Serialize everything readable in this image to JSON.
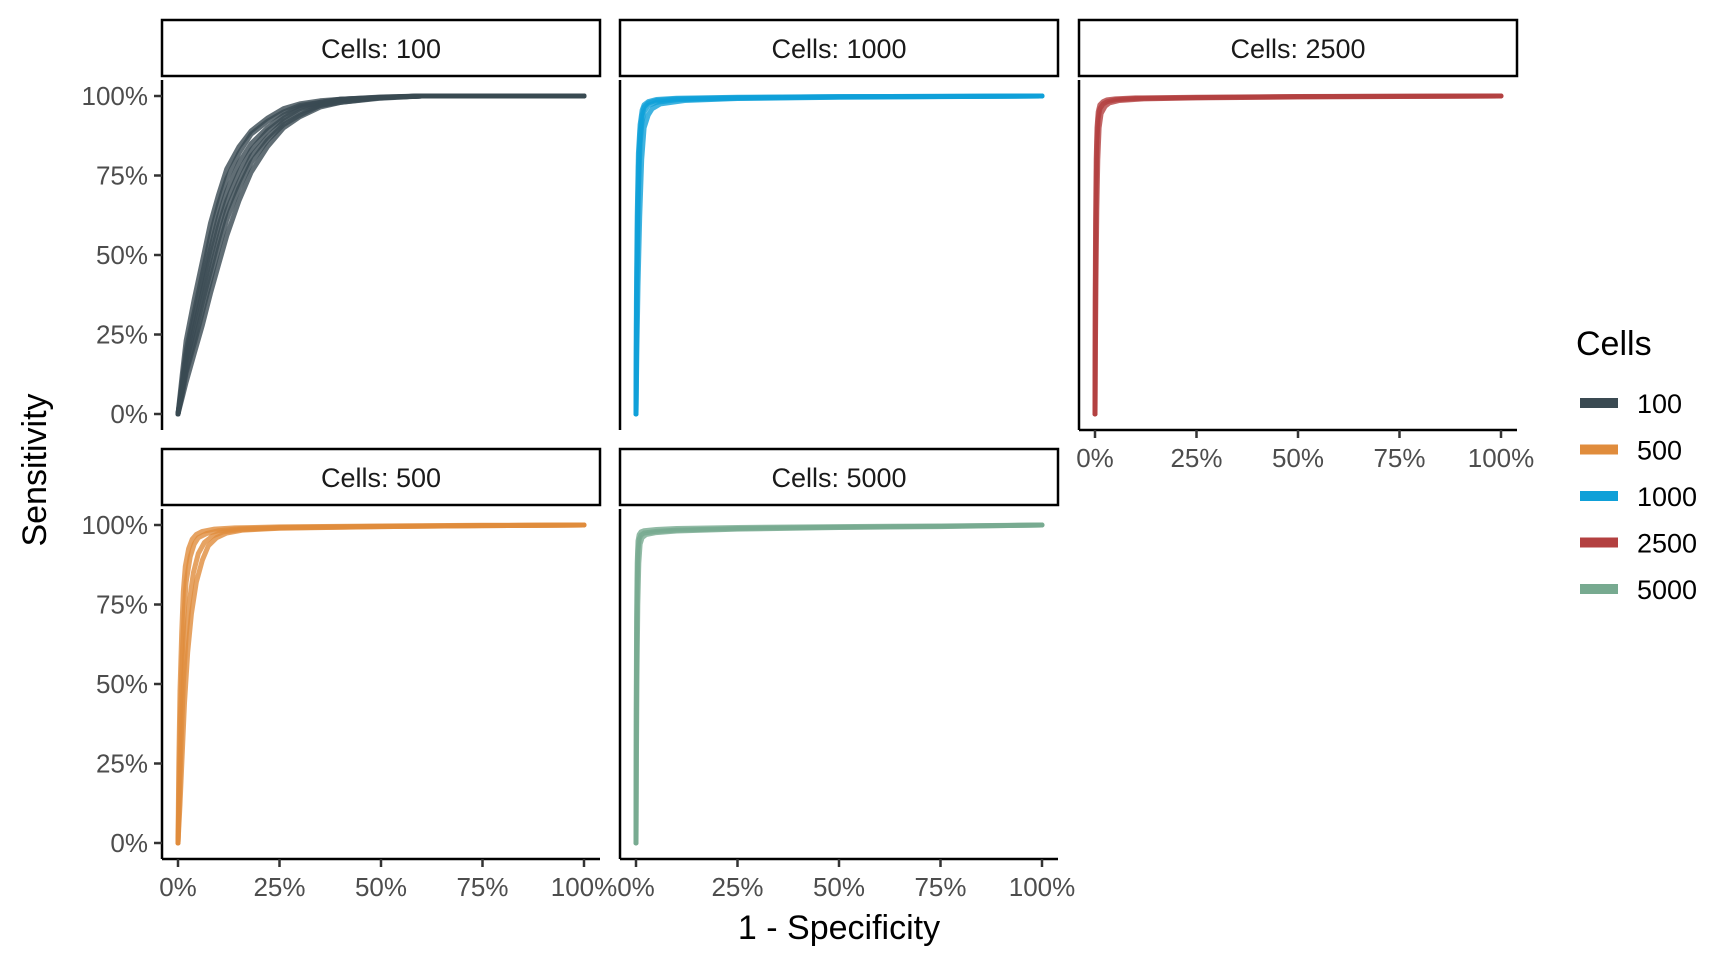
{
  "chart_data": {
    "type": "line",
    "xlabel": "1 - Specificity",
    "ylabel": "Sensitivity",
    "xlim": [
      0,
      100
    ],
    "ylim": [
      0,
      100
    ],
    "x_ticks": [
      "0%",
      "25%",
      "50%",
      "75%",
      "100%"
    ],
    "y_ticks": [
      "0%",
      "25%",
      "50%",
      "75%",
      "100%"
    ],
    "grid": false,
    "legend": {
      "title": "Cells",
      "position": "right",
      "items": [
        {
          "label": "100",
          "color": "#3a4a52"
        },
        {
          "label": "500",
          "color": "#e08c3c"
        },
        {
          "label": "1000",
          "color": "#0fa0d8"
        },
        {
          "label": "2500",
          "color": "#b34040"
        },
        {
          "label": "5000",
          "color": "#77aa90"
        }
      ]
    },
    "panels": [
      {
        "strip": "Cells: 100",
        "color": "#3a4a52",
        "series": [
          {
            "x": [
              0,
              1,
              2,
              4,
              6,
              8,
              10,
              12,
              15,
              18,
              22,
              26,
              30,
              35,
              40,
              50,
              60,
              75,
              100
            ],
            "y": [
              0,
              10,
              20,
              32,
              44,
              56,
              66,
              74,
              82,
              88,
              92,
              95,
              97,
              98,
              99,
              99.5,
              100,
              100,
              100
            ]
          },
          {
            "x": [
              0,
              1,
              2,
              4,
              6,
              8,
              10,
              12,
              15,
              18,
              22,
              26,
              30,
              35,
              40,
              50,
              60,
              75,
              100
            ],
            "y": [
              0,
              6,
              13,
              22,
              32,
              42,
              52,
              61,
              71,
              79,
              86,
              91,
              94,
              97,
              98,
              99.5,
              100,
              100,
              100
            ]
          },
          {
            "x": [
              0,
              1,
              2,
              4,
              6,
              8,
              10,
              12,
              15,
              18,
              22,
              26,
              30,
              35,
              40,
              50,
              60,
              75,
              100
            ],
            "y": [
              0,
              8,
              16,
              27,
              38,
              49,
              59,
              67,
              76,
              83,
              89,
              93,
              96,
              97.5,
              98.5,
              99.5,
              100,
              100,
              100
            ]
          },
          {
            "x": [
              0,
              1,
              2,
              4,
              6,
              8,
              10,
              12,
              15,
              18,
              22,
              26,
              30,
              35,
              40,
              50,
              60,
              75,
              100
            ],
            "y": [
              0,
              12,
              23,
              36,
              48,
              60,
              69,
              77,
              84,
              89,
              93,
              96,
              97.5,
              98.5,
              99,
              99.7,
              100,
              100,
              100
            ]
          },
          {
            "x": [
              0,
              1,
              2,
              4,
              6,
              8,
              10,
              12,
              15,
              18,
              22,
              26,
              30,
              35,
              40,
              50,
              60,
              75,
              100
            ],
            "y": [
              0,
              5,
              10,
              19,
              28,
              38,
              47,
              56,
              67,
              76,
              84,
              90,
              93.5,
              96.5,
              98,
              99.3,
              100,
              100,
              100
            ]
          },
          {
            "x": [
              0,
              1,
              2,
              4,
              6,
              8,
              10,
              12,
              15,
              18,
              22,
              26,
              30,
              35,
              40,
              50,
              60,
              75,
              100
            ],
            "y": [
              0,
              9,
              18,
              30,
              41,
              52,
              62,
              70,
              79,
              85,
              90,
              94,
              96.5,
              98,
              99,
              99.6,
              100,
              100,
              100
            ]
          },
          {
            "x": [
              0,
              1,
              2,
              4,
              6,
              8,
              10,
              12,
              15,
              18,
              22,
              26,
              30,
              35,
              40,
              50,
              60,
              75,
              100
            ],
            "y": [
              0,
              7,
              14,
              24,
              35,
              45,
              55,
              64,
              73,
              81,
              87,
              92,
              95,
              97,
              98.5,
              99.5,
              100,
              100,
              100
            ]
          }
        ]
      },
      {
        "strip": "Cells: 1000",
        "color": "#0fa0d8",
        "series": [
          {
            "x": [
              0,
              0.1,
              0.3,
              0.6,
              1,
              1.5,
              2,
              3,
              5,
              10,
              25,
              50,
              100
            ],
            "y": [
              0,
              20,
              45,
              70,
              85,
              92,
              95,
              97,
              98,
              98.8,
              99.3,
              99.7,
              100
            ]
          },
          {
            "x": [
              0,
              0.1,
              0.3,
              0.6,
              1,
              1.5,
              2,
              3,
              5,
              10,
              25,
              50,
              100
            ],
            "y": [
              0,
              28,
              55,
              78,
              89,
              94,
              96.5,
              97.8,
              98.6,
              99.1,
              99.5,
              99.8,
              100
            ]
          },
          {
            "x": [
              0,
              0.2,
              0.5,
              0.9,
              1.4,
              2,
              3,
              4,
              6,
              12,
              25,
              50,
              100
            ],
            "y": [
              0,
              18,
              40,
              62,
              80,
              90,
              94,
              96,
              97.5,
              98.6,
              99.2,
              99.6,
              100
            ]
          },
          {
            "x": [
              0,
              0.1,
              0.3,
              0.6,
              1,
              1.5,
              2,
              3,
              5,
              10,
              25,
              50,
              100
            ],
            "y": [
              0,
              35,
              62,
              82,
              91,
              95.5,
              97.2,
              98.2,
              98.9,
              99.3,
              99.6,
              99.8,
              100
            ]
          }
        ]
      },
      {
        "strip": "Cells: 2500",
        "color": "#b34040",
        "series": [
          {
            "x": [
              0,
              0.05,
              0.15,
              0.3,
              0.5,
              0.8,
              1.2,
              2,
              3,
              5,
              10,
              25,
              50,
              100
            ],
            "y": [
              0,
              25,
              50,
              72,
              86,
              93,
              96,
              97.5,
              98.2,
              98.8,
              99.2,
              99.5,
              99.8,
              100
            ]
          },
          {
            "x": [
              0,
              0.05,
              0.15,
              0.3,
              0.5,
              0.8,
              1.2,
              2,
              3,
              5,
              10,
              25,
              50,
              100
            ],
            "y": [
              0,
              35,
              60,
              80,
              90,
              95,
              97.2,
              98.2,
              98.8,
              99.1,
              99.4,
              99.6,
              99.85,
              100
            ]
          },
          {
            "x": [
              0,
              0.1,
              0.25,
              0.45,
              0.7,
              1,
              1.5,
              2.5,
              3.5,
              6,
              12,
              25,
              50,
              100
            ],
            "y": [
              0,
              20,
              42,
              64,
              80,
              90,
              94.5,
              96.8,
              97.8,
              98.6,
              99.1,
              99.4,
              99.7,
              100
            ]
          }
        ]
      },
      {
        "strip": "Cells: 500",
        "color": "#e08c3c",
        "series": [
          {
            "x": [
              0,
              0.3,
              0.6,
              1,
              1.5,
              2,
              3,
              4,
              5,
              7,
              10,
              15,
              25,
              50,
              75,
              100
            ],
            "y": [
              0,
              20,
              40,
              58,
              72,
              82,
              90,
              94,
              96,
              97.3,
              98.2,
              98.8,
              99.2,
              99.6,
              99.8,
              100
            ]
          },
          {
            "x": [
              0,
              0.4,
              0.8,
              1.3,
              2,
              2.8,
              3.8,
              5,
              6.5,
              8.5,
              11,
              15,
              25,
              50,
              75,
              100
            ],
            "y": [
              0,
              15,
              32,
              50,
              65,
              76,
              85,
              91,
              94.5,
              96.5,
              97.8,
              98.5,
              99.1,
              99.5,
              99.8,
              100
            ]
          },
          {
            "x": [
              0,
              0.2,
              0.5,
              0.9,
              1.3,
              1.8,
              2.6,
              3.5,
              4.5,
              6,
              9,
              14,
              25,
              50,
              75,
              100
            ],
            "y": [
              0,
              25,
              48,
              66,
              79,
              87,
              92.5,
              95.5,
              97,
              98,
              98.7,
              99.1,
              99.4,
              99.7,
              99.9,
              100
            ]
          },
          {
            "x": [
              0,
              0.5,
              1,
              1.6,
              2.4,
              3.3,
              4.5,
              6,
              7.5,
              9.5,
              12,
              16,
              25,
              50,
              75,
              100
            ],
            "y": [
              0,
              12,
              27,
              44,
              60,
              72,
              82,
              89,
              93.5,
              96,
              97.5,
              98.4,
              99,
              99.5,
              99.8,
              100
            ]
          }
        ]
      },
      {
        "strip": "Cells: 5000",
        "color": "#77aa90",
        "series": [
          {
            "x": [
              0,
              0.05,
              0.15,
              0.3,
              0.5,
              0.8,
              1.2,
              2,
              5,
              10,
              25,
              50,
              75,
              100
            ],
            "y": [
              0,
              30,
              60,
              82,
              92,
              95.5,
              96.8,
              97.5,
              98,
              98.4,
              98.9,
              99.3,
              99.6,
              100
            ]
          },
          {
            "x": [
              0,
              0.05,
              0.15,
              0.3,
              0.5,
              0.8,
              1.2,
              2,
              5,
              10,
              25,
              50,
              75,
              100
            ],
            "y": [
              0,
              40,
              70,
              88,
              95,
              97,
              97.8,
              98.2,
              98.6,
              98.9,
              99.2,
              99.5,
              99.7,
              100
            ]
          },
          {
            "x": [
              0,
              0.1,
              0.25,
              0.45,
              0.7,
              1,
              1.5,
              2.5,
              5,
              10,
              25,
              50,
              75,
              100
            ],
            "y": [
              0,
              25,
              52,
              75,
              88,
              94,
              96,
              97,
              97.6,
              98.1,
              98.7,
              99.2,
              99.5,
              100
            ]
          }
        ]
      }
    ]
  }
}
